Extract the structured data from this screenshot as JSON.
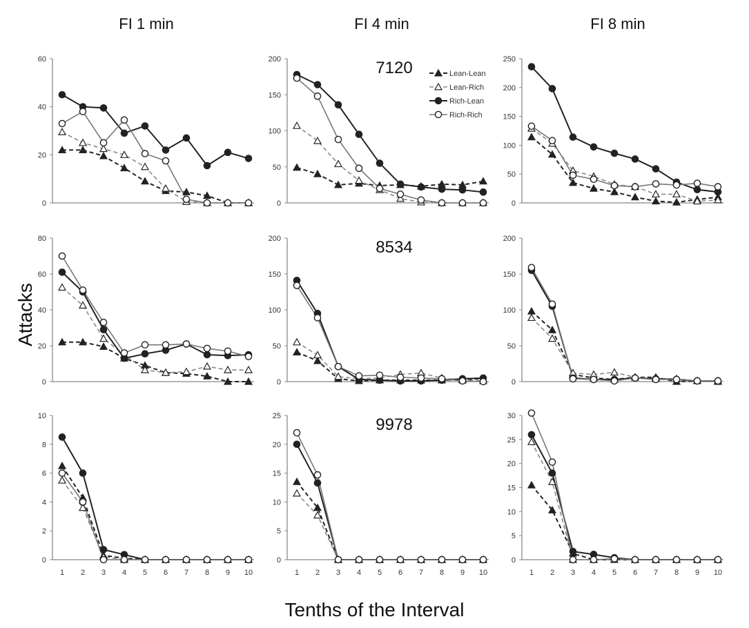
{
  "figure": {
    "column_titles": [
      "FI 1 min",
      "FI 4 min",
      "FI 8 min"
    ],
    "ylabel": "Attacks",
    "xlabel": "Tenths of the Interval"
  },
  "chart_data": {
    "type": "line",
    "x": [
      1,
      2,
      3,
      4,
      5,
      6,
      7,
      8,
      9,
      10
    ],
    "xtick_labels": [
      "1",
      "2",
      "3",
      "4",
      "5",
      "6",
      "7",
      "8",
      "9",
      "10"
    ],
    "xlabel": "Tenths of the Interval",
    "ylabel": "Attacks",
    "legend": {
      "placement": "top-right of FI 4 min / 7120 panel",
      "entries": [
        {
          "name": "Lean-Lean",
          "marker": "filled-triangle",
          "line": "dashed",
          "color": "#222222"
        },
        {
          "name": "Lean-Rich",
          "marker": "open-triangle",
          "line": "dashed",
          "color": "#777777"
        },
        {
          "name": "Rich-Lean",
          "marker": "filled-circle",
          "line": "solid",
          "color": "#222222"
        },
        {
          "name": "Rich-Rich",
          "marker": "open-circle",
          "line": "solid",
          "color": "#666666"
        }
      ]
    },
    "panels": [
      {
        "row": 0,
        "col": 0,
        "column_title": "FI 1 min",
        "subject": "",
        "ylim": [
          0,
          60
        ],
        "yticks": [
          0,
          20,
          40,
          60
        ],
        "show_xtick_labels": false,
        "series": [
          {
            "name": "Lean-Lean",
            "values": [
              22,
              22,
              19.5,
              14.5,
              9,
              5,
              4.5,
              3,
              0,
              0
            ]
          },
          {
            "name": "Lean-Rich",
            "values": [
              29.5,
              25,
              22.5,
              20,
              15,
              6,
              0.5,
              0,
              0,
              0
            ]
          },
          {
            "name": "Rich-Lean",
            "values": [
              45,
              40,
              39.5,
              29,
              32,
              22,
              27,
              15.5,
              21,
              18.5
            ]
          },
          {
            "name": "Rich-Rich",
            "values": [
              33,
              38,
              25,
              34.5,
              20.5,
              17.5,
              1.5,
              0,
              0,
              0
            ]
          }
        ]
      },
      {
        "row": 0,
        "col": 1,
        "column_title": "FI 4 min",
        "subject": "7120",
        "ylim": [
          0,
          200
        ],
        "yticks": [
          0,
          50,
          100,
          150,
          200
        ],
        "show_xtick_labels": false,
        "series": [
          {
            "name": "Lean-Lean",
            "values": [
              49,
              40,
              25,
              27,
              24,
              25,
              23,
              26,
              25,
              30
            ]
          },
          {
            "name": "Lean-Rich",
            "values": [
              107,
              86,
              54,
              31,
              18,
              6,
              1,
              0,
              0,
              0
            ]
          },
          {
            "name": "Rich-Lean",
            "values": [
              178,
              164,
              136,
              95,
              55,
              26,
              22,
              19,
              18,
              15
            ]
          },
          {
            "name": "Rich-Rich",
            "values": [
              173,
              148,
              88,
              48,
              20,
              12,
              4,
              0,
              0,
              0
            ]
          }
        ]
      },
      {
        "row": 0,
        "col": 2,
        "column_title": "FI 8 min",
        "subject": "",
        "ylim": [
          0,
          250
        ],
        "yticks": [
          0,
          50,
          100,
          150,
          200,
          250
        ],
        "show_xtick_labels": false,
        "series": [
          {
            "name": "Lean-Lean",
            "values": [
              114,
              84,
              35,
              25,
              19,
              10,
              3,
              1,
              6,
              10
            ]
          },
          {
            "name": "Lean-Rich",
            "values": [
              129,
              103,
              56,
              46,
              32,
              28,
              15,
              15,
              3,
              5
            ]
          },
          {
            "name": "Rich-Lean",
            "values": [
              236,
              198,
              114,
              97,
              86,
              76,
              59,
              36,
              23,
              19
            ]
          },
          {
            "name": "Rich-Rich",
            "values": [
              133,
              108,
              48,
              41,
              30,
              28,
              33,
              31,
              34,
              28
            ]
          }
        ]
      },
      {
        "row": 1,
        "col": 0,
        "column_title": "FI 1 min",
        "subject": "",
        "ylim": [
          0,
          80
        ],
        "yticks": [
          0,
          20,
          40,
          60,
          80
        ],
        "show_xtick_labels": false,
        "series": [
          {
            "name": "Lean-Lean",
            "values": [
              22,
              22,
              19.5,
              13,
              9,
              5,
              4.5,
              3,
              0,
              0
            ]
          },
          {
            "name": "Lean-Rich",
            "values": [
              52.5,
              42.5,
              24,
              15,
              6.5,
              5,
              5.5,
              8.5,
              6.5,
              6.5
            ]
          },
          {
            "name": "Rich-Lean",
            "values": [
              61,
              50,
              29,
              13,
              15.5,
              17.5,
              21,
              15,
              14.5,
              15
            ]
          },
          {
            "name": "Rich-Rich",
            "values": [
              70,
              51,
              33,
              16,
              20.5,
              20.5,
              21,
              18.5,
              17,
              14
            ]
          }
        ]
      },
      {
        "row": 1,
        "col": 1,
        "column_title": "FI 4 min",
        "subject": "8534",
        "ylim": [
          0,
          200
        ],
        "yticks": [
          0,
          50,
          100,
          150,
          200
        ],
        "show_xtick_labels": false,
        "series": [
          {
            "name": "Lean-Lean",
            "values": [
              41,
              29,
              4,
              1,
              2,
              2,
              2,
              2,
              3,
              4
            ]
          },
          {
            "name": "Lean-Rich",
            "values": [
              55,
              37,
              7,
              4,
              5,
              10,
              12,
              5,
              2,
              1
            ]
          },
          {
            "name": "Rich-Lean",
            "values": [
              141,
              95,
              21,
              3,
              2,
              1,
              1,
              2,
              4,
              5
            ]
          },
          {
            "name": "Rich-Rich",
            "values": [
              134,
              89,
              21,
              8,
              9,
              6,
              5,
              4,
              1,
              0
            ]
          }
        ]
      },
      {
        "row": 1,
        "col": 2,
        "column_title": "FI 8 min",
        "subject": "",
        "ylim": [
          0,
          200
        ],
        "yticks": [
          0,
          50,
          100,
          150,
          200
        ],
        "show_xtick_labels": false,
        "series": [
          {
            "name": "Lean-Lean",
            "values": [
              98,
              72,
              10,
              5,
              3,
              6,
              6,
              0,
              1,
              1
            ]
          },
          {
            "name": "Lean-Rich",
            "values": [
              89,
              60,
              12,
              10,
              13,
              6,
              4,
              4,
              1,
              0
            ]
          },
          {
            "name": "Rich-Lean",
            "values": [
              155,
              105,
              5,
              3,
              3,
              5,
              4,
              3,
              1,
              1
            ]
          },
          {
            "name": "Rich-Rich",
            "values": [
              159,
              108,
              4,
              3,
              1,
              5,
              3,
              3,
              1,
              1
            ]
          }
        ]
      },
      {
        "row": 2,
        "col": 0,
        "column_title": "FI 1 min",
        "subject": "",
        "ylim": [
          0,
          10
        ],
        "yticks": [
          0,
          2,
          4,
          6,
          8,
          10
        ],
        "show_xtick_labels": true,
        "series": [
          {
            "name": "Lean-Lean",
            "values": [
              6.5,
              4.3,
              0.3,
              0.1,
              0,
              0,
              0,
              0,
              0,
              0
            ]
          },
          {
            "name": "Lean-Rich",
            "values": [
              5.5,
              3.6,
              0.2,
              0,
              0,
              0,
              0,
              0,
              0,
              0
            ]
          },
          {
            "name": "Rich-Lean",
            "values": [
              8.5,
              6,
              0.7,
              0.35,
              0,
              0,
              0,
              0,
              0,
              0
            ]
          },
          {
            "name": "Rich-Rich",
            "values": [
              6,
              4,
              0,
              0,
              0,
              0,
              0,
              0,
              0,
              0
            ]
          }
        ]
      },
      {
        "row": 2,
        "col": 1,
        "column_title": "FI 4 min",
        "subject": "9978",
        "ylim": [
          0,
          25
        ],
        "yticks": [
          0,
          5,
          10,
          15,
          20,
          25
        ],
        "show_xtick_labels": true,
        "series": [
          {
            "name": "Lean-Lean",
            "values": [
              13.5,
              9,
              0,
              0,
              0,
              0,
              0,
              0,
              0,
              0
            ]
          },
          {
            "name": "Lean-Rich",
            "values": [
              11.5,
              7.7,
              0,
              0,
              0,
              0,
              0,
              0,
              0,
              0
            ]
          },
          {
            "name": "Rich-Lean",
            "values": [
              20,
              13.3,
              0,
              0,
              0,
              0,
              0,
              0,
              0,
              0
            ]
          },
          {
            "name": "Rich-Rich",
            "values": [
              22,
              14.7,
              0,
              0,
              0,
              0,
              0,
              0,
              0,
              0
            ]
          }
        ]
      },
      {
        "row": 2,
        "col": 2,
        "column_title": "FI 8 min",
        "subject": "",
        "ylim": [
          0,
          32
        ],
        "yticks": [
          0,
          5,
          10,
          15,
          20,
          25,
          30
        ],
        "show_xtick_labels": true,
        "series": [
          {
            "name": "Lean-Lean",
            "values": [
              15.5,
              10.3,
              1.3,
              0,
              0,
              0,
              0,
              0,
              0,
              0
            ]
          },
          {
            "name": "Lean-Rich",
            "values": [
              24.5,
              16.2,
              0,
              0,
              0,
              0,
              0,
              0,
              0,
              0
            ]
          },
          {
            "name": "Rich-Lean",
            "values": [
              26,
              18,
              1.7,
              1.1,
              0.4,
              0,
              0,
              0,
              0,
              0
            ]
          },
          {
            "name": "Rich-Rich",
            "values": [
              30.5,
              20.3,
              0,
              0,
              0.2,
              0,
              0,
              0,
              0,
              0
            ]
          }
        ]
      }
    ]
  }
}
